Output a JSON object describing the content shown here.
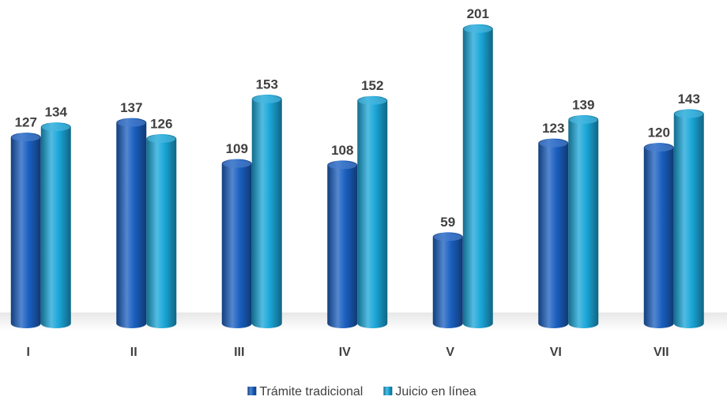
{
  "chart_data": {
    "type": "bar",
    "categories": [
      "I",
      "II",
      "III",
      "IV",
      "V",
      "VI",
      "VII"
    ],
    "series": [
      {
        "name": "Trámite tradicional",
        "color": "#1a5fc0",
        "values": [
          127,
          137,
          109,
          108,
          59,
          123,
          120
        ]
      },
      {
        "name": "Juicio en línea",
        "color": "#1aa6d8",
        "values": [
          134,
          126,
          153,
          152,
          201,
          139,
          143
        ]
      }
    ],
    "ylim": [
      0,
      210
    ],
    "legend": "bottom"
  }
}
